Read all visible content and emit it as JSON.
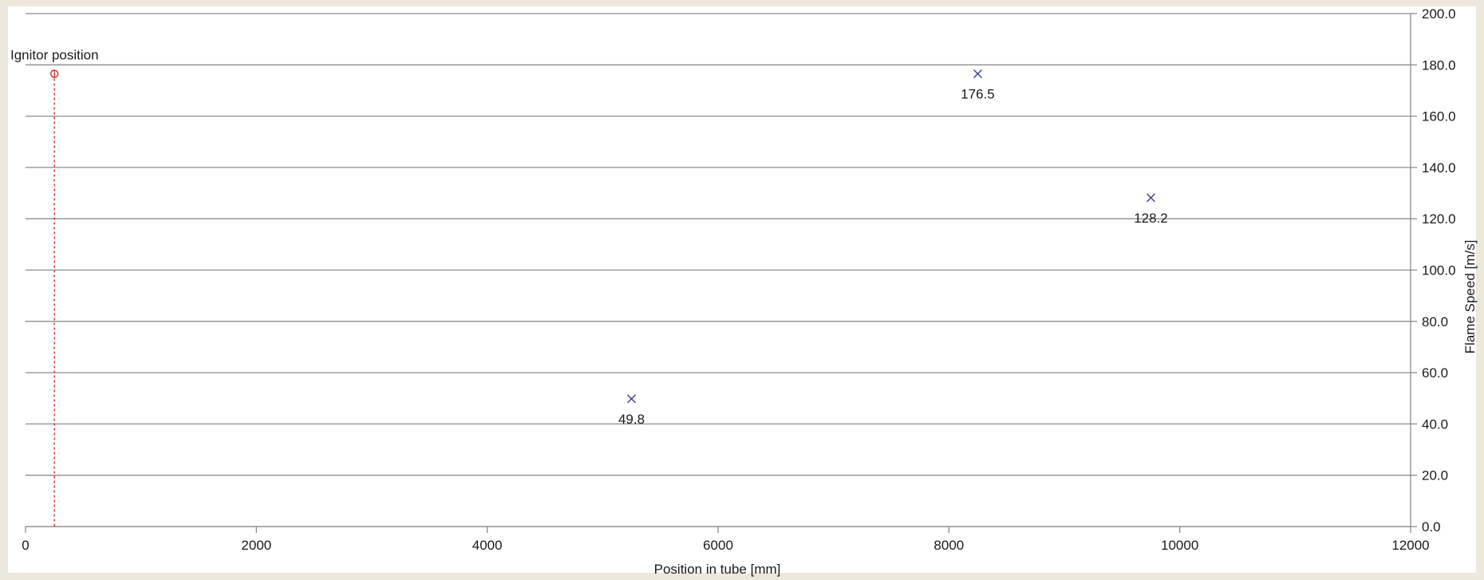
{
  "chart_data": {
    "type": "scatter",
    "title": "",
    "xlabel": "Position in tube [mm]",
    "ylabel": "Flame Speed [m/s]",
    "xlim": [
      0,
      12000
    ],
    "ylim": [
      0,
      200
    ],
    "x_ticks": [
      0,
      2000,
      4000,
      6000,
      8000,
      10000,
      12000
    ],
    "x_tick_labels": [
      "0",
      "2000",
      "4000",
      "6000",
      "8000",
      "10000",
      "12000"
    ],
    "y_ticks": [
      0,
      20,
      40,
      60,
      80,
      100,
      120,
      140,
      160,
      180,
      200
    ],
    "y_tick_labels": [
      "0.0",
      "20.0",
      "40.0",
      "60.0",
      "80.0",
      "100.0",
      "120.0",
      "140.0",
      "160.0",
      "180.0",
      "200.0"
    ],
    "y_axis_side": "right",
    "grid": "horizontal",
    "legend": "none",
    "series": [
      {
        "marker": "x",
        "color": "#3d3d8f",
        "points": [
          {
            "x": 5250,
            "y": 49.8,
            "label": "49.8"
          },
          {
            "x": 8250,
            "y": 176.5,
            "label": "176.5"
          },
          {
            "x": 9750,
            "y": 128.2,
            "label": "128.2"
          }
        ]
      },
      {
        "marker": "circle",
        "color": "#d42020",
        "points": [
          {
            "x": 250,
            "y": 176.5,
            "label": "Ignitor position"
          }
        ],
        "drop_line": true
      }
    ]
  }
}
